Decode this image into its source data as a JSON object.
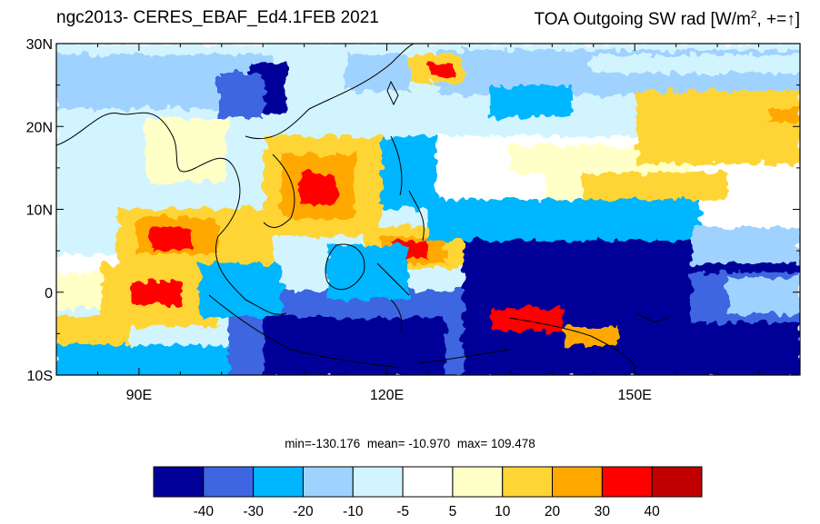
{
  "header": {
    "left_title": "ngc2013- CERES_EBAF_Ed4.1FEB 2021",
    "right_title_main": "TOA Outgoing SW rad [W/m",
    "right_title_sup": "2",
    "right_title_tail": ", +=",
    "right_title_arrow": "↑",
    "right_title_close": "]"
  },
  "map": {
    "lat_labels": [
      "30N",
      "20N",
      "10N",
      "0",
      "10S"
    ],
    "lat_values": [
      30,
      20,
      10,
      0,
      -10
    ],
    "lon_labels": [
      "90E",
      "120E",
      "150E"
    ],
    "lon_values": [
      90,
      120,
      150
    ],
    "lon_range": [
      80,
      170
    ],
    "lat_range": [
      -10,
      30
    ]
  },
  "stats": {
    "min_text": "min=-130.176",
    "mean_text": "mean= -10.970",
    "max_text": "max= 109.478"
  },
  "colorbar": {
    "colors": [
      "#000099",
      "#3d66e0",
      "#00b6ff",
      "#a0d2ff",
      "#d2f4ff",
      "#ffffff",
      "#ffffc8",
      "#ffd535",
      "#ffa800",
      "#ff0000",
      "#c00000"
    ],
    "labels": [
      "-40",
      "-30",
      "-20",
      "-10",
      "-5",
      "5",
      "10",
      "20",
      "30",
      "40"
    ]
  }
}
